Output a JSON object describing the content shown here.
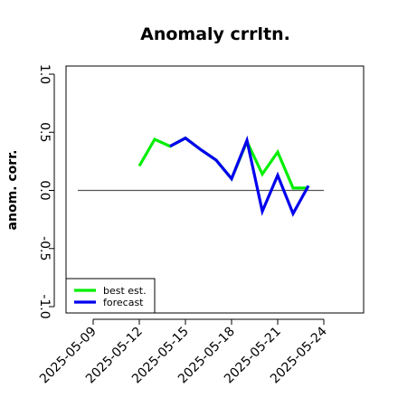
{
  "chart_data": {
    "type": "line",
    "title": "Anomaly crrltn.",
    "xlabel": "",
    "ylabel": "anom. corr.",
    "x": [
      "2025-05-08",
      "2025-05-09",
      "2025-05-10",
      "2025-05-11",
      "2025-05-12",
      "2025-05-13",
      "2025-05-14",
      "2025-05-15",
      "2025-05-16",
      "2025-05-17",
      "2025-05-18",
      "2025-05-19",
      "2025-05-20",
      "2025-05-21",
      "2025-05-22",
      "2025-05-23",
      "2025-05-24"
    ],
    "x_ticks": [
      "2025-05-09",
      "2025-05-12",
      "2025-05-15",
      "2025-05-18",
      "2025-05-21",
      "2025-05-24"
    ],
    "highlighted_tick": "2025-05-15",
    "highlight_color": "#2e8b2e",
    "ylim": [
      -1.0,
      1.0
    ],
    "y_ticks": [
      "-1.0",
      "-0.5",
      "0.0",
      "0.5",
      "1.0"
    ],
    "reference_line": 0.0,
    "grid": false,
    "legend_position": "bottom-left",
    "series": [
      {
        "name": "best est.",
        "color": "#00ee00",
        "values": [
          null,
          null,
          null,
          null,
          0.21,
          0.44,
          0.38,
          0.45,
          0.35,
          0.26,
          0.1,
          0.42,
          0.14,
          0.33,
          0.02,
          0.02,
          null
        ]
      },
      {
        "name": "forecast",
        "color": "#0000ee",
        "values": [
          null,
          null,
          null,
          null,
          null,
          null,
          0.38,
          0.45,
          0.35,
          0.26,
          0.1,
          0.43,
          -0.18,
          0.13,
          -0.2,
          0.04,
          null
        ]
      }
    ]
  }
}
